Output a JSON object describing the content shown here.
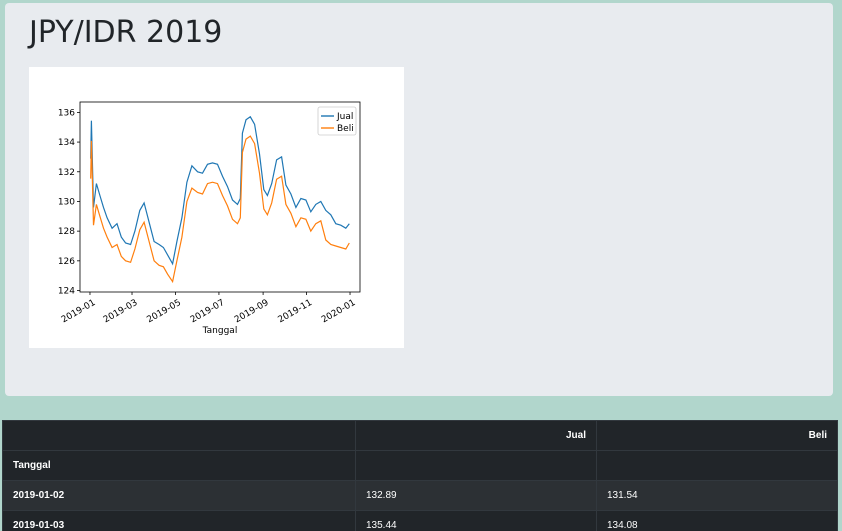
{
  "page": {
    "title": "JPY/IDR 2019"
  },
  "chart_data": {
    "type": "line",
    "xlabel": "Tanggal",
    "ylabel": "",
    "x_tick_labels": [
      "2019-01",
      "2019-03",
      "2019-05",
      "2019-07",
      "2019-09",
      "2019-11",
      "2020-01"
    ],
    "y_ticks": [
      124,
      126,
      128,
      130,
      132,
      134,
      136
    ],
    "xlim": [
      "2018-12-18",
      "2020-01-15"
    ],
    "ylim": [
      123.9,
      136.7
    ],
    "legend_position": "top-right",
    "grid": false,
    "series": [
      {
        "name": "Jual",
        "color": "#1f77b4",
        "x": [
          "2019-01-02",
          "2019-01-03",
          "2019-01-06",
          "2019-01-10",
          "2019-01-15",
          "2019-01-20",
          "2019-01-25",
          "2019-02-01",
          "2019-02-08",
          "2019-02-14",
          "2019-02-20",
          "2019-02-27",
          "2019-03-05",
          "2019-03-12",
          "2019-03-18",
          "2019-03-25",
          "2019-04-01",
          "2019-04-08",
          "2019-04-14",
          "2019-04-20",
          "2019-04-27",
          "2019-05-03",
          "2019-05-10",
          "2019-05-17",
          "2019-05-24",
          "2019-06-01",
          "2019-06-08",
          "2019-06-15",
          "2019-06-22",
          "2019-06-29",
          "2019-07-06",
          "2019-07-13",
          "2019-07-20",
          "2019-07-27",
          "2019-07-31",
          "2019-08-03",
          "2019-08-08",
          "2019-08-14",
          "2019-08-20",
          "2019-08-27",
          "2019-09-02",
          "2019-09-07",
          "2019-09-13",
          "2019-09-20",
          "2019-09-27",
          "2019-10-03",
          "2019-10-10",
          "2019-10-17",
          "2019-10-24",
          "2019-10-31",
          "2019-11-07",
          "2019-11-14",
          "2019-11-21",
          "2019-11-28",
          "2019-12-05",
          "2019-12-12",
          "2019-12-19",
          "2019-12-26",
          "2019-12-31"
        ],
        "values": [
          132.89,
          135.44,
          129.6,
          131.2,
          130.4,
          129.6,
          128.9,
          128.2,
          128.5,
          127.6,
          127.2,
          127.1,
          128.0,
          129.4,
          129.9,
          128.6,
          127.3,
          127.1,
          126.9,
          126.4,
          125.8,
          127.3,
          128.9,
          131.3,
          132.4,
          132.0,
          131.9,
          132.5,
          132.6,
          132.5,
          131.7,
          131.0,
          130.1,
          129.8,
          130.2,
          134.6,
          135.5,
          135.7,
          135.2,
          133.2,
          130.8,
          130.4,
          131.2,
          132.8,
          133.0,
          131.1,
          130.5,
          129.6,
          130.2,
          130.1,
          129.3,
          129.8,
          130.0,
          129.4,
          129.1,
          128.5,
          128.4,
          128.2,
          128.5
        ]
      },
      {
        "name": "Beli",
        "color": "#ff7f0e",
        "x": [
          "2019-01-02",
          "2019-01-03",
          "2019-01-06",
          "2019-01-10",
          "2019-01-15",
          "2019-01-20",
          "2019-01-25",
          "2019-02-01",
          "2019-02-08",
          "2019-02-14",
          "2019-02-20",
          "2019-02-27",
          "2019-03-05",
          "2019-03-12",
          "2019-03-18",
          "2019-03-25",
          "2019-04-01",
          "2019-04-08",
          "2019-04-14",
          "2019-04-20",
          "2019-04-27",
          "2019-05-03",
          "2019-05-10",
          "2019-05-17",
          "2019-05-24",
          "2019-06-01",
          "2019-06-08",
          "2019-06-15",
          "2019-06-22",
          "2019-06-29",
          "2019-07-06",
          "2019-07-13",
          "2019-07-20",
          "2019-07-27",
          "2019-07-31",
          "2019-08-03",
          "2019-08-08",
          "2019-08-14",
          "2019-08-20",
          "2019-08-27",
          "2019-09-02",
          "2019-09-07",
          "2019-09-13",
          "2019-09-20",
          "2019-09-27",
          "2019-10-03",
          "2019-10-10",
          "2019-10-17",
          "2019-10-24",
          "2019-10-31",
          "2019-11-07",
          "2019-11-14",
          "2019-11-21",
          "2019-11-28",
          "2019-12-05",
          "2019-12-12",
          "2019-12-19",
          "2019-12-26",
          "2019-12-31"
        ],
        "values": [
          131.54,
          134.08,
          128.4,
          129.8,
          129.0,
          128.2,
          127.6,
          126.9,
          127.1,
          126.3,
          126.0,
          125.9,
          126.8,
          128.1,
          128.6,
          127.3,
          126.0,
          125.7,
          125.6,
          125.1,
          124.6,
          126.0,
          127.6,
          130.0,
          130.9,
          130.6,
          130.5,
          131.2,
          131.3,
          131.2,
          130.4,
          129.7,
          128.8,
          128.5,
          128.9,
          133.3,
          134.2,
          134.4,
          133.9,
          131.9,
          129.5,
          129.1,
          129.9,
          131.5,
          131.7,
          129.8,
          129.2,
          128.3,
          128.9,
          128.8,
          128.0,
          128.5,
          128.7,
          127.4,
          127.1,
          127.0,
          126.9,
          126.8,
          127.2
        ]
      }
    ]
  },
  "table": {
    "headers": [
      "",
      "Jual",
      "Beli"
    ],
    "index_name": "Tanggal",
    "rows": [
      {
        "date": "2019-01-02",
        "jual": "132.89",
        "beli": "131.54"
      },
      {
        "date": "2019-01-03",
        "jual": "135.44",
        "beli": "134.08"
      }
    ]
  }
}
